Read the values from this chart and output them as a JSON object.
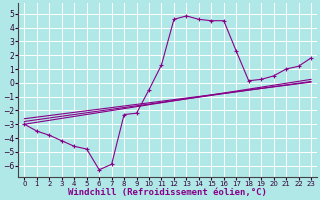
{
  "background_color": "#b0e8e8",
  "grid_color": "#ffffff",
  "line_color": "#880088",
  "xlabel": "Windchill (Refroidissement éolien,°C)",
  "xlim": [
    -0.5,
    23.5
  ],
  "ylim": [
    -6.8,
    5.8
  ],
  "yticks": [
    -6,
    -5,
    -4,
    -3,
    -2,
    -1,
    0,
    1,
    2,
    3,
    4,
    5
  ],
  "xticks": [
    0,
    1,
    2,
    3,
    4,
    5,
    6,
    7,
    8,
    9,
    10,
    11,
    12,
    13,
    14,
    15,
    16,
    17,
    18,
    19,
    20,
    21,
    22,
    23
  ],
  "curve1_x": [
    0,
    1,
    2,
    3,
    4,
    5,
    6,
    7,
    8,
    9,
    10,
    11,
    12,
    13,
    14,
    15,
    16,
    17,
    18,
    19,
    20,
    21,
    22,
    23
  ],
  "curve1_y": [
    -3.0,
    -3.5,
    -3.8,
    -4.2,
    -4.6,
    -4.8,
    -6.3,
    -5.9,
    -2.3,
    -2.2,
    -0.5,
    1.3,
    4.6,
    4.85,
    4.6,
    4.5,
    4.5,
    2.3,
    0.15,
    0.25,
    0.5,
    1.0,
    1.2,
    1.8
  ],
  "line1_x": [
    0,
    23
  ],
  "line1_y": [
    -3.0,
    0.25
  ],
  "line2_x": [
    0,
    23
  ],
  "line2_y": [
    -2.8,
    0.1
  ],
  "line3_x": [
    0,
    23
  ],
  "line3_y": [
    -2.6,
    0.05
  ],
  "lw": 0.8,
  "ms": 3.0
}
